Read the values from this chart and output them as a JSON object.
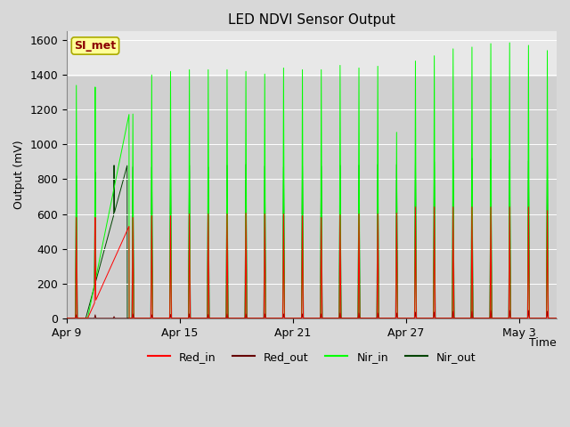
{
  "title": "LED NDVI Sensor Output",
  "ylabel": "Output (mV)",
  "xlabel": "Time",
  "ylim": [
    0,
    1650
  ],
  "yticks": [
    0,
    200,
    400,
    600,
    800,
    1000,
    1200,
    1400,
    1600
  ],
  "xtick_labels": [
    "Apr 9",
    "Apr 15",
    "Apr 21",
    "Apr 27",
    "May 3"
  ],
  "xtick_day_offsets": [
    0,
    6,
    12,
    18,
    24
  ],
  "n_days": 26,
  "bg_color": "#d8d8d8",
  "plot_bg_color": "#d0d0d0",
  "upper_band_color": "#e8e8e8",
  "colors": {
    "Red_in": "#ff0000",
    "Red_out": "#660000",
    "Nir_in": "#00ff00",
    "Nir_out": "#004400"
  },
  "annotation_text": "SI_met",
  "annotation_color": "#8b0000",
  "annotation_bg": "#ffff99",
  "annotation_border": "#aaaa00",
  "legend_labels": [
    "Red_in",
    "Red_out",
    "Nir_in",
    "Nir_out"
  ],
  "title_fontsize": 11,
  "axis_fontsize": 9,
  "figsize": [
    6.4,
    4.8
  ],
  "dpi": 100
}
